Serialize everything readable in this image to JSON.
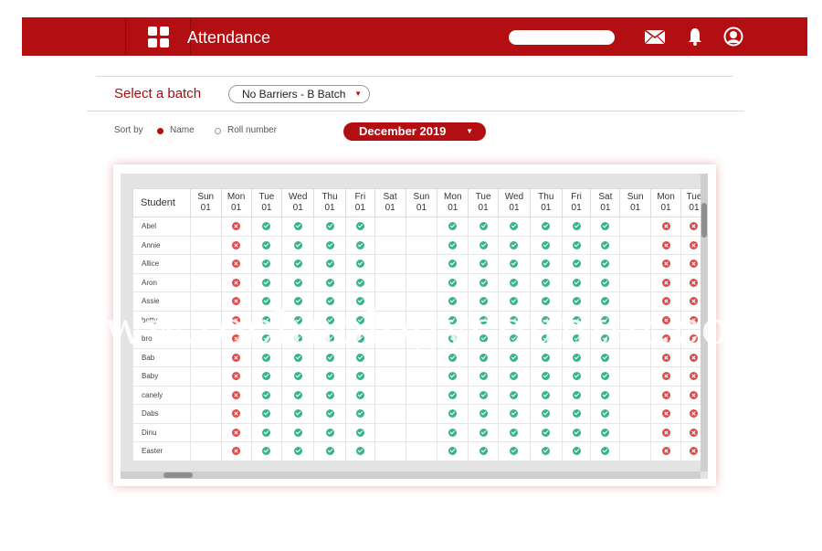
{
  "header": {
    "title": "Attendance",
    "icons": [
      "grid-icon",
      "mail-icon",
      "bell-icon",
      "user-icon"
    ]
  },
  "batch": {
    "label": "Select a batch",
    "selected": "No Barriers - B Batch"
  },
  "sort": {
    "label": "Sort by",
    "options": [
      {
        "label": "Name",
        "selected": true
      },
      {
        "label": "Roll number",
        "selected": false
      }
    ]
  },
  "month": {
    "selected": "December 2019"
  },
  "table": {
    "student_header": "Student",
    "columns": [
      {
        "day": "Sun",
        "date": "01"
      },
      {
        "day": "Mon",
        "date": "01"
      },
      {
        "day": "Tue",
        "date": "01"
      },
      {
        "day": "Wed",
        "date": "01"
      },
      {
        "day": "Thu",
        "date": "01"
      },
      {
        "day": "Fri",
        "date": "01"
      },
      {
        "day": "Sat",
        "date": "01"
      },
      {
        "day": "Sun",
        "date": "01"
      },
      {
        "day": "Mon",
        "date": "01"
      },
      {
        "day": "Tue",
        "date": "01"
      },
      {
        "day": "Wed",
        "date": "01"
      },
      {
        "day": "Thu",
        "date": "01"
      },
      {
        "day": "Fri",
        "date": "01"
      },
      {
        "day": "Sat",
        "date": "01"
      },
      {
        "day": "Sun",
        "date": "01"
      },
      {
        "day": "Mon",
        "date": "01"
      },
      {
        "day": "Tue",
        "date": "01"
      }
    ],
    "pattern": [
      "",
      "absent",
      "present",
      "present",
      "present",
      "present",
      "",
      "",
      "present",
      "present",
      "present",
      "present",
      "present",
      "present",
      "",
      "absent",
      "absent"
    ],
    "students": [
      "Abel",
      "Annie",
      "Allice",
      "Aron",
      "Assie",
      "betty",
      "bro",
      "Bab",
      "Baby",
      "canely",
      "Dabs",
      "Dinu",
      "Easter"
    ]
  },
  "watermark": "www.technologycounter.com",
  "colors": {
    "brand": "#b30f13",
    "present": "#38b38a",
    "absent": "#dd4b4b"
  }
}
